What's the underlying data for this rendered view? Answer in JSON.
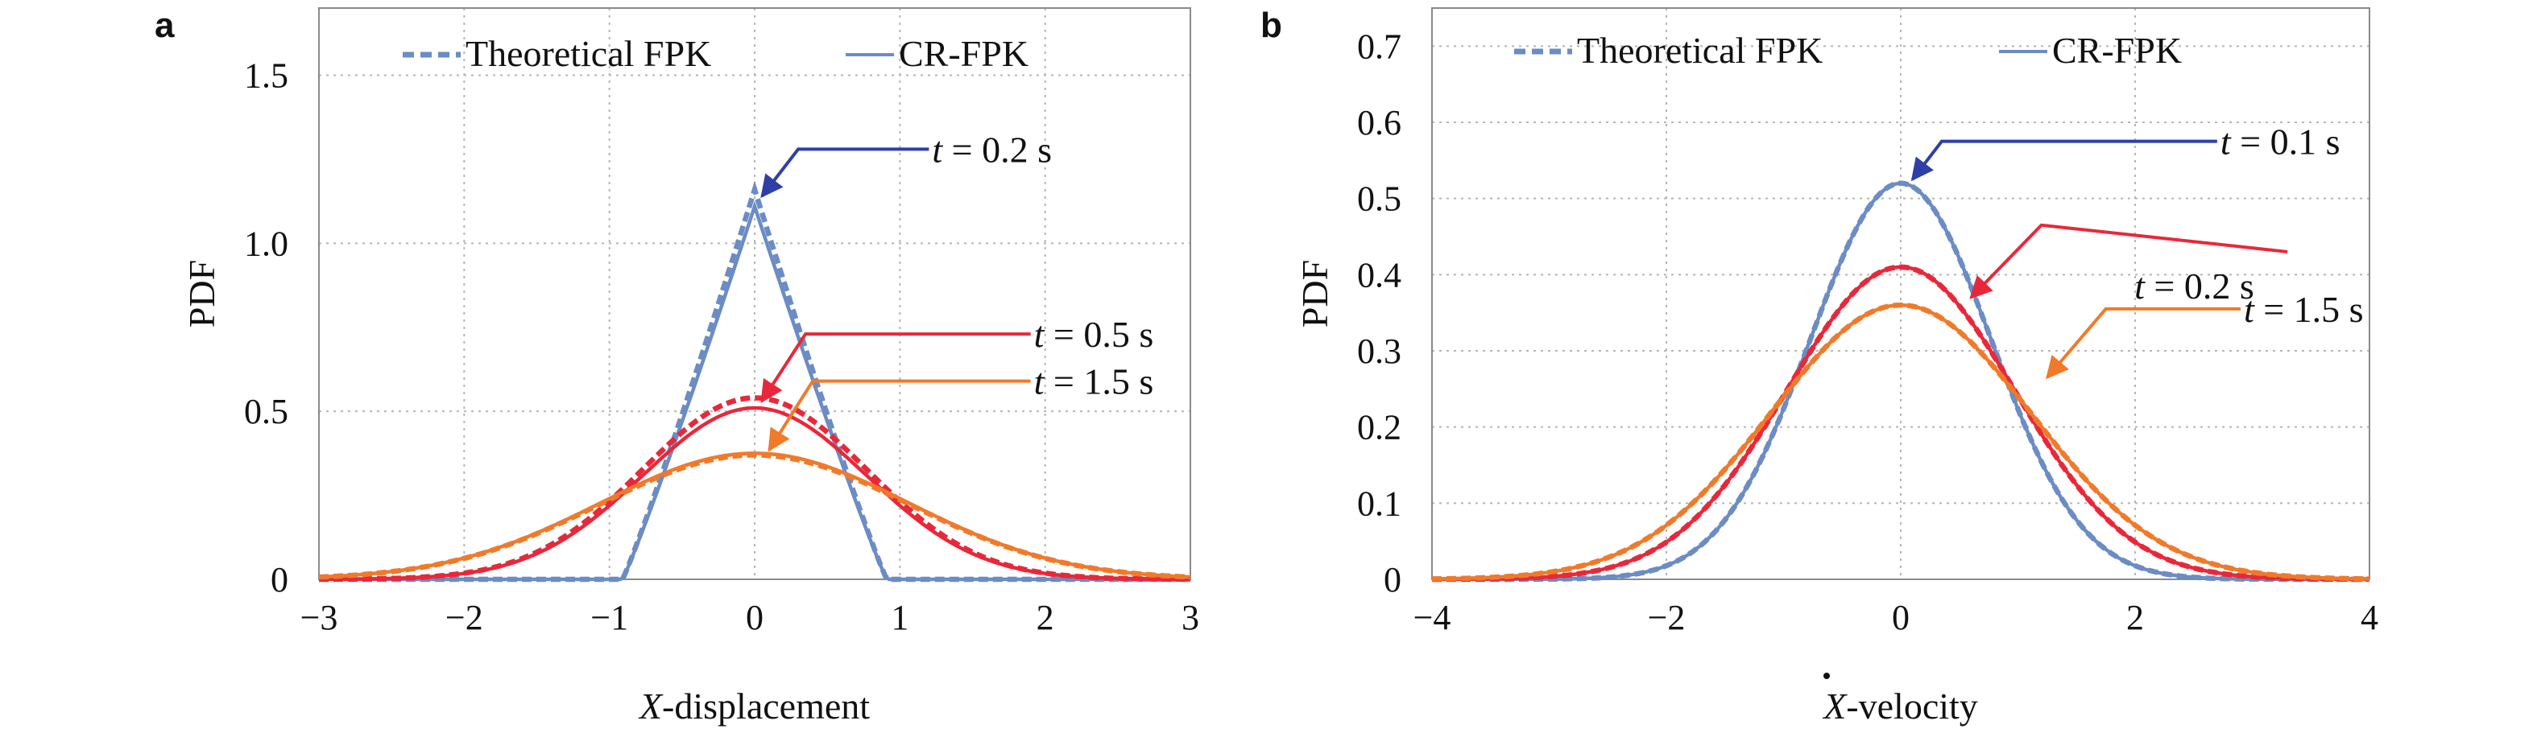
{
  "legend": {
    "theoretical": "Theoretical FPK",
    "cr": "CR-FPK"
  },
  "colors": {
    "blue": "#6b8cc4",
    "red": "#e8283a",
    "orange": "#f07a2a",
    "arrow_blue": "#2f3fa8"
  },
  "chart_data": [
    {
      "type": "line",
      "panel_label": "a",
      "xlabel_var": "X",
      "xlabel_rest": "-displacement",
      "ylabel": "PDF",
      "xlim": [
        -3,
        3
      ],
      "ylim": [
        0,
        1.7
      ],
      "xticks": [
        -3,
        -2,
        -1,
        0,
        1,
        2,
        3
      ],
      "xtick_labels": [
        "−3",
        "−2",
        "−1",
        "0",
        "1",
        "2",
        "3"
      ],
      "yticks": [
        0,
        0.5,
        1.0,
        1.5
      ],
      "ytick_labels": [
        "0",
        "0.5",
        "1.0",
        "1.5"
      ],
      "grid": true,
      "legend_position": "top",
      "series": [
        {
          "color": "blue",
          "peak_theoretical": 1.16,
          "peak_cr": 1.11,
          "std": 0.35,
          "kind": "triangular"
        },
        {
          "color": "red",
          "peak_theoretical": 0.54,
          "peak_cr": 0.51,
          "std": 0.77,
          "kind": "gaussian"
        },
        {
          "color": "orange",
          "peak_theoretical": 0.37,
          "peak_cr": 0.375,
          "std": 1.06,
          "kind": "gaussian"
        }
      ],
      "annotations": [
        {
          "time_value": "0.2 s",
          "color": "arrow_blue",
          "arrow_x": 0.05,
          "arrow_y": 1.14,
          "elbow_x": 0.3,
          "elbow_y": 1.28,
          "text_x": 1.2,
          "text_y": 1.28
        },
        {
          "time_value": "0.5 s",
          "color": "red",
          "arrow_x": 0.05,
          "arrow_y": 0.53,
          "elbow_x": 0.35,
          "elbow_y": 0.73,
          "text_x": 1.9,
          "text_y": 0.73
        },
        {
          "time_value": "1.5 s",
          "color": "orange",
          "arrow_x": 0.1,
          "arrow_y": 0.385,
          "elbow_x": 0.4,
          "elbow_y": 0.59,
          "text_x": 1.9,
          "text_y": 0.59
        }
      ]
    },
    {
      "type": "line",
      "panel_label": "b",
      "xlabel_var": "X",
      "xlabel_rest": "-velocity",
      "ylabel": "PDF",
      "xlim": [
        -4,
        4
      ],
      "ylim": [
        0,
        0.75
      ],
      "xticks": [
        -4,
        -2,
        0,
        2,
        4
      ],
      "xtick_labels": [
        "−4",
        "−2",
        "0",
        "2",
        "4"
      ],
      "yticks": [
        0,
        0.1,
        0.2,
        0.3,
        0.4,
        0.5,
        0.6,
        0.7
      ],
      "ytick_labels": [
        "0",
        "0.1",
        "0.2",
        "0.3",
        "0.4",
        "0.5",
        "0.6",
        "0.7"
      ],
      "grid": true,
      "legend_position": "top",
      "series": [
        {
          "color": "blue",
          "peak_theoretical": 0.52,
          "peak_cr": 0.52,
          "std": 0.77,
          "kind": "gaussian"
        },
        {
          "color": "red",
          "peak_theoretical": 0.41,
          "peak_cr": 0.41,
          "std": 0.97,
          "kind": "gaussian"
        },
        {
          "color": "orange",
          "peak_theoretical": 0.36,
          "peak_cr": 0.36,
          "std": 1.11,
          "kind": "gaussian"
        }
      ],
      "annotations": [
        {
          "time_value": "0.1 s",
          "color": "arrow_blue",
          "arrow_x": 0.1,
          "arrow_y": 0.525,
          "elbow_x": 0.35,
          "elbow_y": 0.575,
          "text_x": 2.7,
          "text_y": 0.575
        },
        {
          "time_value": "0.2 s",
          "color": "red",
          "arrow_x": 0.6,
          "arrow_y": 0.37,
          "elbow_x": 1.2,
          "elbow_y": 0.465,
          "text_x": 3.3,
          "text_y": 0.43
        },
        {
          "time_value": "1.5 s",
          "color": "orange",
          "arrow_x": 1.25,
          "arrow_y": 0.265,
          "elbow_x": 1.75,
          "elbow_y": 0.355,
          "text_x": 2.9,
          "text_y": 0.355
        }
      ]
    }
  ]
}
